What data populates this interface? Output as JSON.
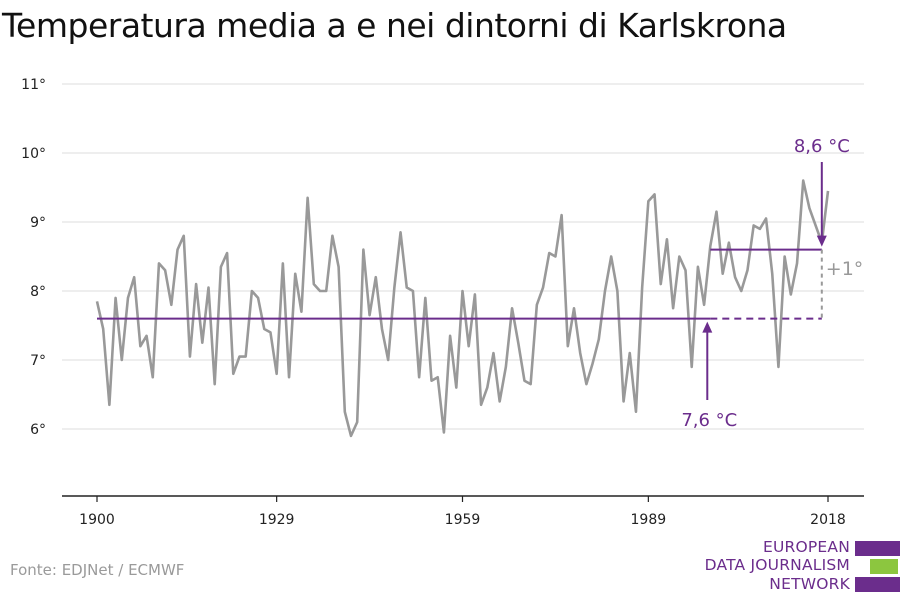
{
  "title": "Temperatura media a e nei dintorni di Karlskrona",
  "source": "Fonte: EDJNet / ECMWF",
  "logo": {
    "lines": [
      "EUROPEAN",
      "DATA JOURNALISM",
      "NETWORK"
    ],
    "colors": {
      "purple": "#6b2d8c",
      "green": "#8cc63f"
    }
  },
  "colors": {
    "series": "#999999",
    "reference": "#6b2d8c",
    "grid": "#dddddd",
    "axis": "#222222",
    "delta": "#999999"
  },
  "chart_data": {
    "type": "line",
    "title": "Temperatura media a e nei dintorni di Karlskrona",
    "xlim": [
      1900,
      2018
    ],
    "ylim": [
      5,
      11
    ],
    "x_ticks": [
      1900,
      1929,
      1959,
      1989,
      2018
    ],
    "y_ticks": [
      6,
      7,
      8,
      9,
      10,
      11
    ],
    "y_tick_labels": [
      "6°",
      "7°",
      "8°",
      "9°",
      "10°",
      "11°"
    ],
    "grid": true,
    "series": [
      {
        "x_start": 1900,
        "values": [
          7.85,
          7.45,
          6.35,
          7.9,
          7.0,
          7.9,
          8.2,
          7.2,
          7.35,
          6.75,
          8.4,
          8.3,
          7.8,
          8.6,
          8.8,
          7.05,
          8.1,
          7.25,
          8.05,
          6.65,
          8.35,
          8.55,
          6.8,
          7.05,
          7.05,
          8.0,
          7.9,
          7.45,
          7.4,
          6.8,
          8.4,
          6.75,
          8.25,
          7.7,
          9.35,
          8.1,
          8.0,
          8.0,
          8.8,
          8.35,
          6.25,
          5.9,
          6.1,
          8.6,
          7.65,
          8.2,
          7.45,
          7.0,
          8.05,
          8.85,
          8.05,
          8.0,
          6.75,
          7.9,
          6.7,
          6.75,
          5.95,
          7.35,
          6.6,
          8.0,
          7.2,
          7.95,
          6.35,
          6.6,
          7.1,
          6.4,
          6.9,
          7.75,
          7.25,
          6.7,
          6.65,
          7.8,
          8.05,
          8.55,
          8.5,
          9.1,
          7.2,
          7.75,
          7.1,
          6.65,
          6.95,
          7.3,
          8.0,
          8.5,
          8.0,
          6.4,
          7.1,
          6.25,
          8.05,
          9.3,
          9.4,
          8.1,
          8.75,
          7.75,
          8.5,
          8.3,
          6.9,
          8.35,
          7.8,
          8.65,
          9.15,
          8.25,
          8.7,
          8.2,
          8.0,
          8.3,
          8.95,
          8.9,
          9.05,
          8.25,
          6.9,
          8.5,
          7.95,
          8.4,
          9.6,
          9.2,
          8.95,
          8.7,
          9.45
        ]
      }
    ],
    "reference_line": {
      "value": 7.6,
      "label": "7,6 °C",
      "solid_to": 1999,
      "dashed_to": 2017
    },
    "recent_average": {
      "value": 8.6,
      "label": "8,6 °C",
      "from": 1999,
      "to": 2017
    },
    "delta_label": "+1°"
  }
}
